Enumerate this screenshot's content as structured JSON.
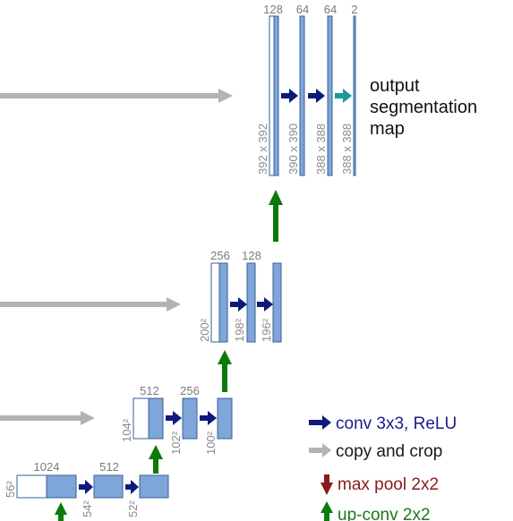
{
  "diagram": {
    "top_row": {
      "channels": [
        "128",
        "64",
        "64",
        "2"
      ],
      "sizes": [
        "392 x 392",
        "390 x 390",
        "388 x 388",
        "388 x 388"
      ]
    },
    "output_label": [
      "output",
      "segmentation",
      "map"
    ],
    "row2": {
      "channels": [
        "256",
        "128"
      ],
      "sizes": [
        "200²",
        "198²",
        "196²"
      ]
    },
    "row3": {
      "channels": [
        "512",
        "256"
      ],
      "sizes": [
        "104²",
        "102²",
        "100²"
      ]
    },
    "row4": {
      "channels": [
        "1024",
        "512"
      ],
      "sizes": [
        "56²",
        "54²",
        "52²"
      ]
    }
  },
  "legend": [
    {
      "label": "conv 3x3, ReLU",
      "color": "#1a1a8c",
      "icon": "right-arrow-icon"
    },
    {
      "label": "copy and crop",
      "color": "#1a1a1a",
      "icon": "gray-right-arrow-icon"
    },
    {
      "label": "max pool 2x2",
      "color": "#8b1a1a",
      "icon": "down-arrow-icon"
    },
    {
      "label": "up-conv 2x2",
      "color": "#1a7a1a",
      "icon": "up-arrow-icon"
    }
  ],
  "colors": {
    "block_fill": "#7ea6d8",
    "block_stroke": "#3a5f9a",
    "copy_arrow": "#b3b3b3",
    "conv_arrow": "#0d1a7a",
    "upconv_arrow": "#0a7a0a",
    "final_arrow": "#1a9a9a",
    "maxpool_arrow": "#8b1a1a"
  }
}
